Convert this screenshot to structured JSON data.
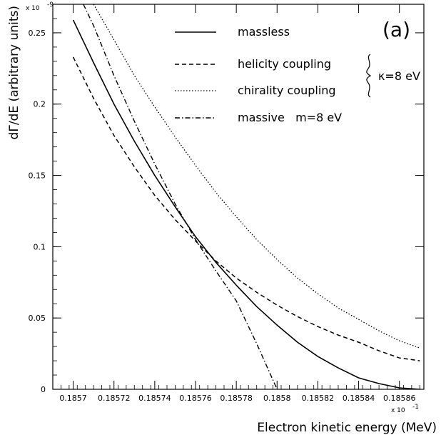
{
  "chart_data": {
    "type": "line",
    "panel_label": "(a)",
    "xlabel": "Electron kinetic energy (MeV)",
    "ylabel": "dΓ/dE (arbitrary units)",
    "x_multiplier": "x 10",
    "x_multiplier_exp": "-1",
    "y_multiplier": "x 10",
    "y_multiplier_exp": "-9",
    "xlim": [
      0.18569,
      0.185872
    ],
    "ylim": [
      0,
      0.27
    ],
    "x_ticks": [
      0.1857,
      0.18572,
      0.18574,
      0.18576,
      0.18578,
      0.1858,
      0.18582,
      0.18584,
      0.18586
    ],
    "x_tick_labels": [
      "0.1857",
      "0.18572",
      "0.18574",
      "0.18576",
      "0.18578",
      "0.1858",
      "0.18582",
      "0.18584",
      "0.18586"
    ],
    "y_ticks": [
      0,
      0.05,
      0.1,
      0.15,
      0.2,
      0.25
    ],
    "y_tick_labels": [
      "0",
      "0.05",
      "0.1",
      "0.15",
      "0.2",
      "0.25"
    ],
    "grid": false,
    "legend_brace_label": "κ=8 eV",
    "series": [
      {
        "name": "massless",
        "style": "solid",
        "x": [
          0.1857,
          0.18571,
          0.18572,
          0.18573,
          0.18574,
          0.18575,
          0.18576,
          0.18577,
          0.18578,
          0.18579,
          0.1858,
          0.18581,
          0.18582,
          0.18583,
          0.18584,
          0.18585,
          0.18586,
          0.18587
        ],
        "y": [
          0.259,
          0.229,
          0.2,
          0.174,
          0.15,
          0.128,
          0.107,
          0.089,
          0.073,
          0.058,
          0.045,
          0.033,
          0.023,
          0.015,
          0.008,
          0.004,
          0.001,
          0.0
        ]
      },
      {
        "name": "helicity coupling",
        "style": "dashed",
        "x": [
          0.1857,
          0.18571,
          0.18572,
          0.18573,
          0.18574,
          0.18575,
          0.18576,
          0.18577,
          0.18578,
          0.18579,
          0.1858,
          0.18581,
          0.18582,
          0.18583,
          0.18584,
          0.18585,
          0.18586,
          0.18587
        ],
        "y": [
          0.233,
          0.204,
          0.178,
          0.156,
          0.136,
          0.119,
          0.104,
          0.09,
          0.078,
          0.068,
          0.059,
          0.051,
          0.044,
          0.038,
          0.033,
          0.027,
          0.022,
          0.02
        ]
      },
      {
        "name": "chirality coupling",
        "style": "dotted",
        "x": [
          0.18571,
          0.18572,
          0.18573,
          0.18574,
          0.18575,
          0.18576,
          0.18577,
          0.18578,
          0.18579,
          0.1858,
          0.18581,
          0.18582,
          0.18583,
          0.18584,
          0.18585,
          0.18586,
          0.18587
        ],
        "y": [
          0.27,
          0.245,
          0.22,
          0.198,
          0.177,
          0.157,
          0.138,
          0.121,
          0.105,
          0.091,
          0.078,
          0.067,
          0.057,
          0.049,
          0.041,
          0.034,
          0.029
        ]
      },
      {
        "name": "massive   m=8 eV",
        "style": "dashdot",
        "x": [
          0.185705,
          0.18571,
          0.18572,
          0.18573,
          0.18574,
          0.18575,
          0.18576,
          0.18577,
          0.18578,
          0.18579,
          0.1858
        ],
        "y": [
          0.27,
          0.255,
          0.22,
          0.188,
          0.158,
          0.13,
          0.105,
          0.083,
          0.062,
          0.032,
          0.0
        ]
      }
    ]
  }
}
